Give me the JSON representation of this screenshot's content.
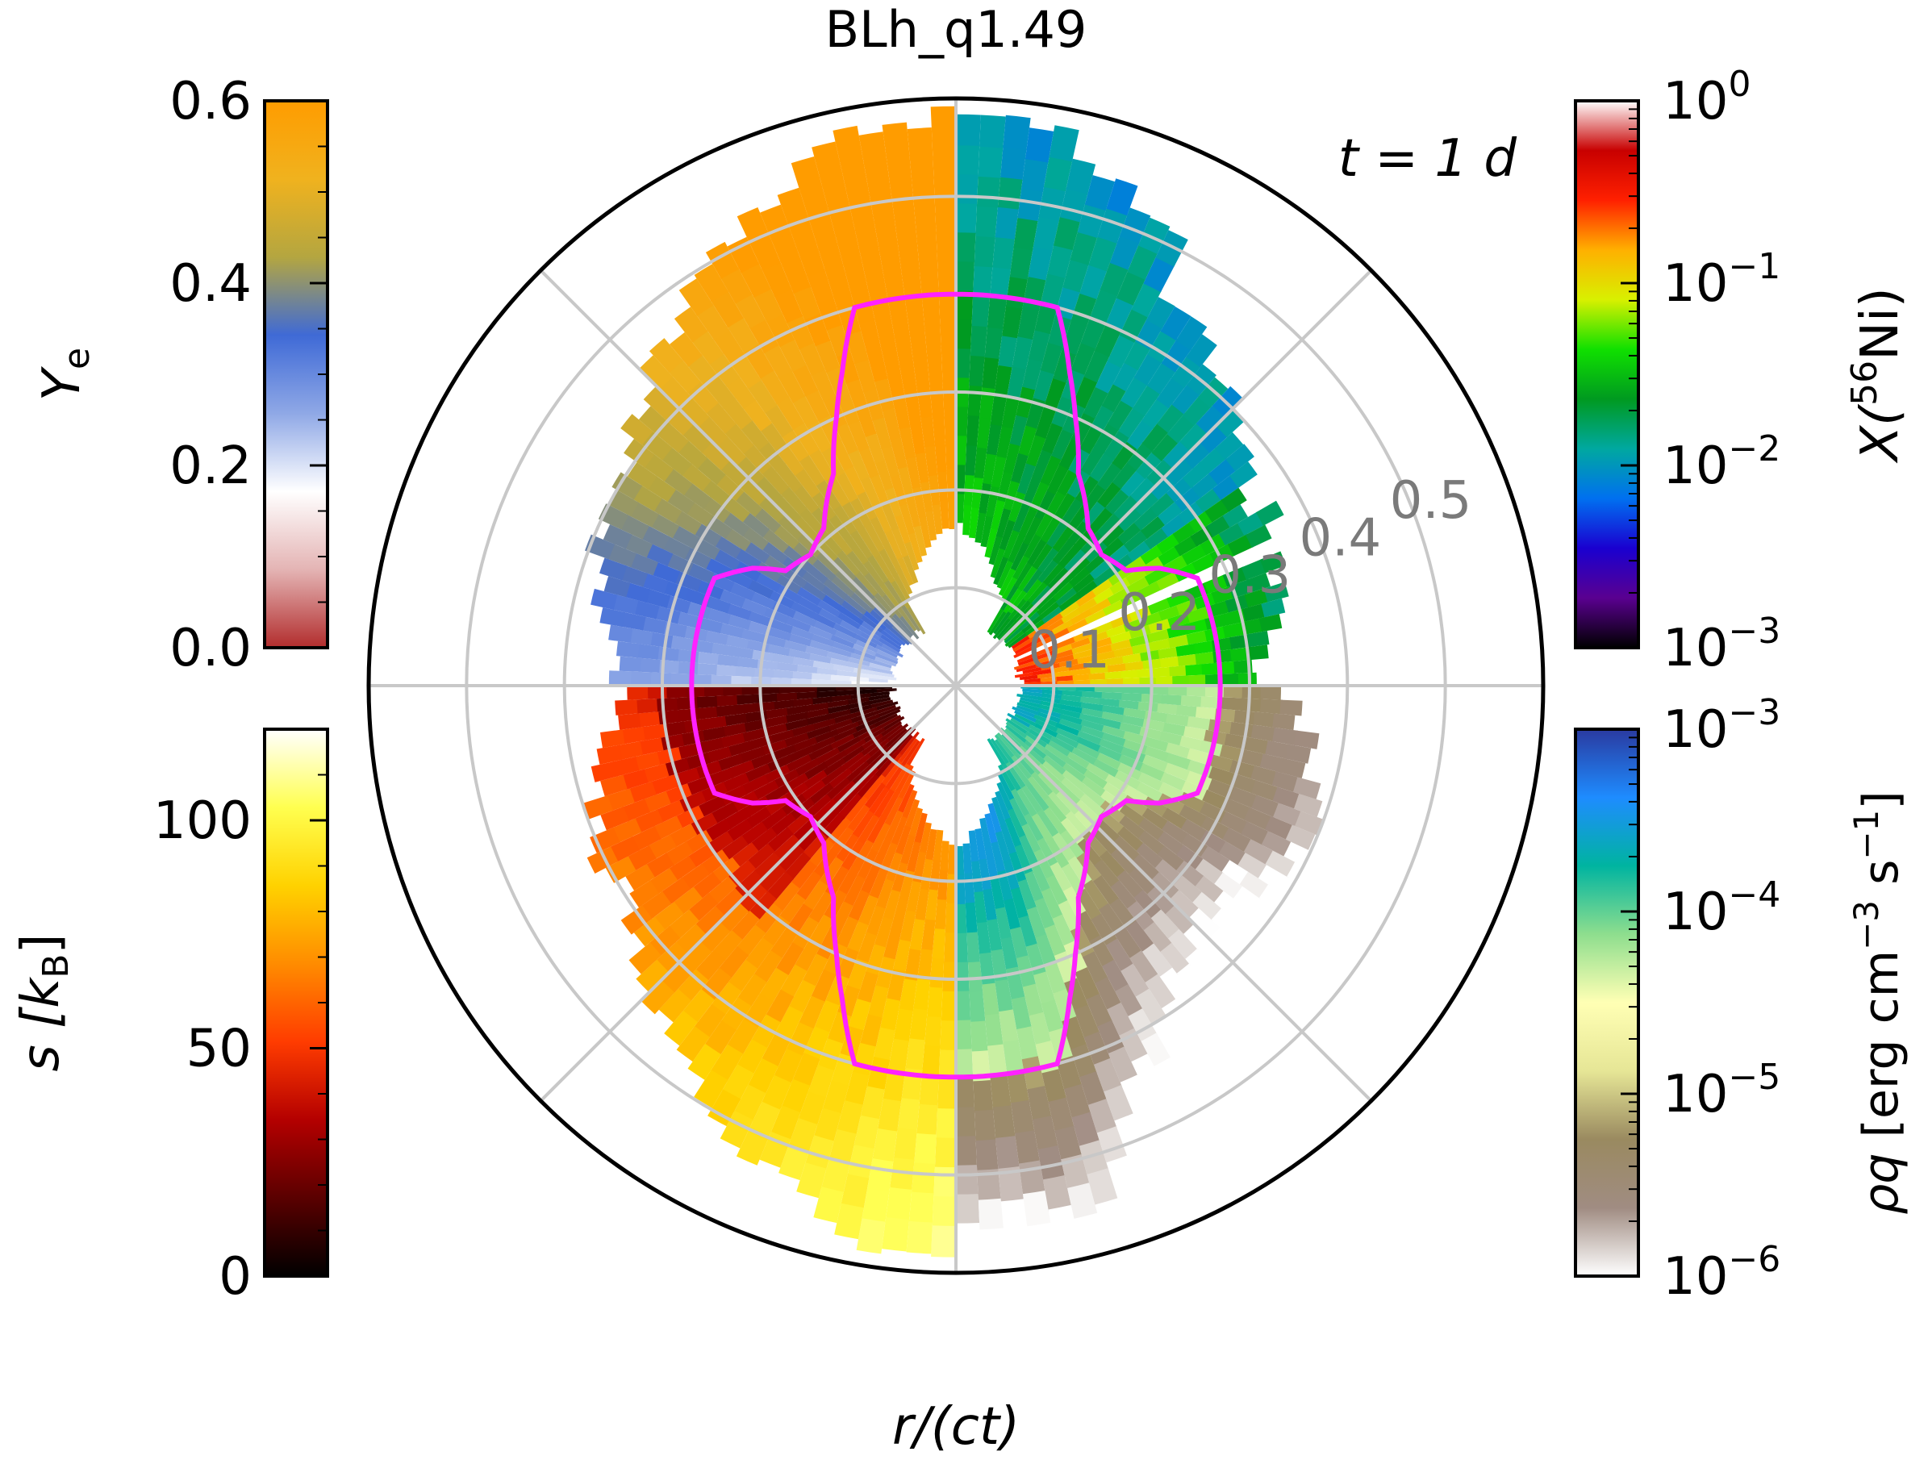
{
  "chart_data": {
    "type": "polar",
    "title": "BLh_q1.49",
    "annotation": "t = 1 d",
    "xlabel": "r/(ct)",
    "radial_axis": {
      "ticks": [
        0.1,
        0.2,
        0.3,
        0.4,
        0.5
      ],
      "tick_labels": [
        "0.1",
        "0.2",
        "0.3",
        "0.4",
        "0.5"
      ],
      "rlim": [
        0,
        0.6
      ],
      "grid": true
    },
    "quadrants": {
      "upper_left": "Y_e",
      "upper_right": "X(56Ni)",
      "lower_left": "s [k_B]",
      "lower_right": "rho qdot"
    },
    "outline_color": "#ff22ff",
    "outline_radius_by_polar_angle_deg": [
      [
        0,
        0.4
      ],
      [
        8,
        0.4
      ],
      [
        15,
        0.4
      ],
      [
        20,
        0.34
      ],
      [
        24,
        0.3
      ],
      [
        30,
        0.25
      ],
      [
        40,
        0.21
      ],
      [
        48,
        0.2
      ],
      [
        56,
        0.21
      ],
      [
        60,
        0.24
      ],
      [
        66,
        0.27
      ],
      [
        74,
        0.27
      ],
      [
        82,
        0.27
      ],
      [
        90,
        0.27
      ]
    ],
    "colorbars": [
      {
        "id": "ye",
        "label": "Y_e",
        "scale": "linear",
        "range": [
          0.0,
          0.6
        ],
        "ticks": [
          0.0,
          0.2,
          0.4,
          0.6
        ],
        "tick_labels": [
          "0.0",
          "0.2",
          "0.4",
          "0.6"
        ],
        "colormap": [
          "#b22d2d",
          "#e4b4b4",
          "#ffffff",
          "#8fa8e6",
          "#3f6ad6",
          "#b4a640",
          "#f0b21e",
          "#ff9c00"
        ]
      },
      {
        "id": "s",
        "label": "s [k_B]",
        "scale": "linear",
        "range": [
          0,
          120
        ],
        "ticks": [
          0,
          50,
          100
        ],
        "tick_labels": [
          "0",
          "50",
          "100"
        ],
        "colormap": [
          "#000000",
          "#5a0000",
          "#b40000",
          "#ff3c00",
          "#ff8c00",
          "#ffd200",
          "#ffff50",
          "#ffffff"
        ]
      },
      {
        "id": "ni",
        "label": "X(56Ni)",
        "scale": "log",
        "range": [
          0.001,
          1
        ],
        "ticks": [
          0.001,
          0.01,
          0.1,
          1
        ],
        "tick_labels": [
          "10",
          "10",
          "10",
          "10"
        ],
        "tick_exponents": [
          "−3",
          "−2",
          "−1",
          "0"
        ],
        "colormap": [
          "#000000",
          "#5a0090",
          "#1a00d0",
          "#0070f0",
          "#00a8a0",
          "#009a20",
          "#10e000",
          "#d8f000",
          "#ffb000",
          "#ff2000",
          "#c80000",
          "#ffffff"
        ]
      },
      {
        "id": "q",
        "label": "rho qdot [erg cm^-3 s^-1]",
        "scale": "log",
        "range": [
          1e-06,
          0.001
        ],
        "ticks": [
          1e-06,
          1e-05,
          0.0001,
          0.001
        ],
        "tick_labels": [
          "10",
          "10",
          "10",
          "10"
        ],
        "tick_exponents": [
          "−6",
          "−5",
          "−4",
          "−3"
        ],
        "colormap": [
          "#ffffff",
          "#a08c82",
          "#9a8a60",
          "#e6e696",
          "#ffffb4",
          "#8ede8e",
          "#00b4a0",
          "#1e8cff",
          "#2a3aa0"
        ]
      }
    ]
  },
  "colorbar_text": {
    "ye_label": "Y",
    "ye_sub": "e",
    "s_label": "s [",
    "s_k": "k",
    "s_sub": "B",
    "s_close": "]",
    "ni_label": "X(",
    "ni_sup": "56",
    "ni_elem": "Ni)",
    "q_rho": "ρ",
    "q_dot": "q",
    "q_unit": " [erg cm",
    "q_exp1": "−3",
    "q_mid": " s",
    "q_exp2": "−1",
    "q_close": "]"
  }
}
